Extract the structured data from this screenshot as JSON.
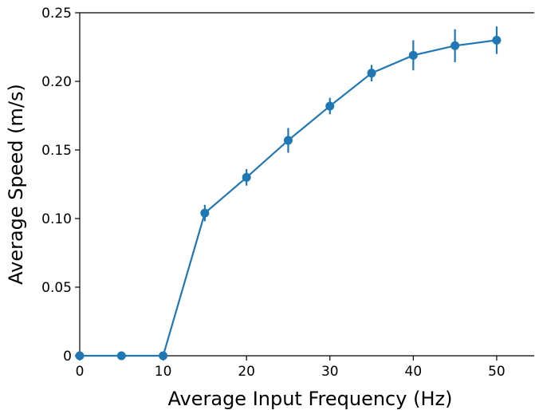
{
  "chart_data": {
    "type": "line",
    "title": "",
    "xlabel": "Average Input Frequency (Hz)",
    "ylabel": "Average Speed (m/s)",
    "xlim": [
      0,
      54.5
    ],
    "ylim": [
      0,
      0.25
    ],
    "x_ticks": [
      0,
      10,
      20,
      30,
      40,
      50
    ],
    "x_tick_labels": [
      "0",
      "10",
      "20",
      "30",
      "40",
      "50"
    ],
    "y_ticks": [
      0,
      0.05,
      0.1,
      0.15,
      0.2,
      0.25
    ],
    "y_tick_labels": [
      "0",
      "0.05",
      "0.10",
      "0.15",
      "0.20",
      "0.25"
    ],
    "grid": false,
    "color": "#1f77b4",
    "series": [
      {
        "x": [
          0,
          5,
          10,
          15,
          20,
          25,
          30,
          35,
          40,
          45,
          50
        ],
        "y": [
          0,
          0,
          0,
          0.104,
          0.13,
          0.157,
          0.182,
          0.206,
          0.219,
          0.226,
          0.23
        ],
        "error": [
          0,
          0,
          0,
          0.006,
          0.006,
          0.009,
          0.006,
          0.006,
          0.011,
          0.012,
          0.01
        ]
      }
    ]
  }
}
